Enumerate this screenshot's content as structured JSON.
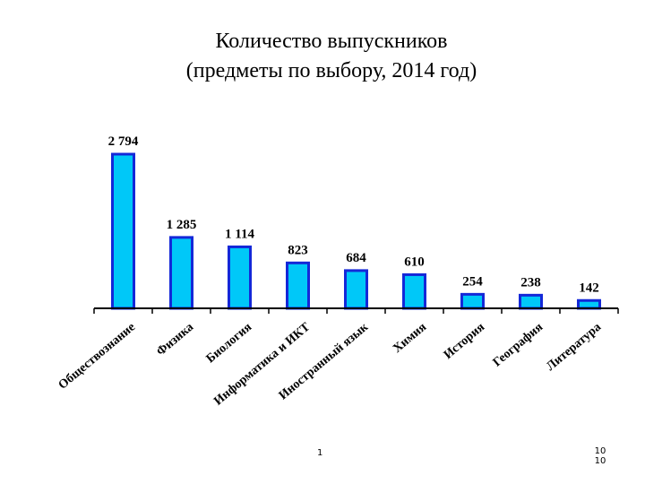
{
  "title": {
    "line1": "Количество выпускников",
    "line2": "(предметы по выбору, 2014 год)"
  },
  "chart_data": {
    "type": "bar",
    "categories": [
      "Обществознание",
      "Физика",
      "Биология",
      "Информатика и ИКТ",
      "Иностранный язык",
      "Химия",
      "История",
      "География",
      "Литература"
    ],
    "values": [
      2794,
      1285,
      1114,
      823,
      684,
      610,
      254,
      238,
      142
    ],
    "value_labels": [
      "2 794",
      "1 285",
      "1 114",
      "823",
      "684",
      "610",
      "254",
      "238",
      "142"
    ],
    "ylim": [
      0,
      3000
    ],
    "grid": false,
    "bar_fill": "#00c8f8",
    "bar_stroke": "#1428d8",
    "axis_color": "#000000"
  },
  "footer": {
    "page_number": "1",
    "ref_line1": "10",
    "ref_line2": "10"
  }
}
